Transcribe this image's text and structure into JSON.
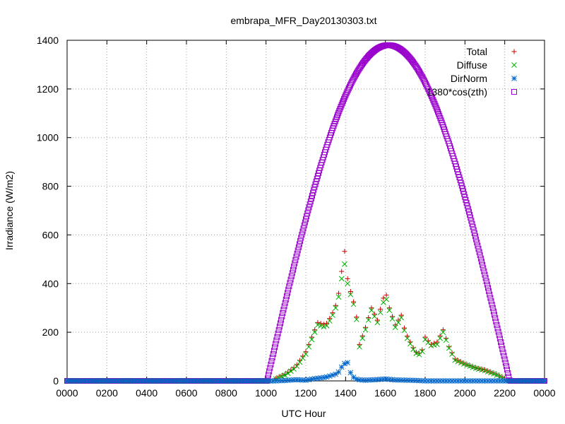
{
  "chart_data": {
    "type": "scatter",
    "title": "embrapa_MFR_Day20130303.txt",
    "xlabel": "UTC Hour",
    "ylabel": "Irradiance (W/m2)",
    "xlim": [
      0,
      24
    ],
    "ylim": [
      0,
      1400
    ],
    "x_tick_values": [
      0,
      2,
      4,
      6,
      8,
      10,
      12,
      14,
      16,
      18,
      20,
      22,
      24
    ],
    "x_tick_labels": [
      "0000",
      "0200",
      "0400",
      "0600",
      "0800",
      "1000",
      "1200",
      "1400",
      "1600",
      "1800",
      "2000",
      "2200",
      "0000"
    ],
    "y_ticks": [
      0,
      200,
      400,
      600,
      800,
      1000,
      1200,
      1400
    ],
    "grid": true,
    "legend_position": "top-right",
    "series": [
      {
        "name": "Total",
        "marker": "plus",
        "color": "#cc0000",
        "points": [
          [
            10.5,
            10
          ],
          [
            11.0,
            30
          ],
          [
            11.5,
            60
          ],
          [
            12.0,
            120
          ],
          [
            12.3,
            180
          ],
          [
            12.6,
            240
          ],
          [
            13.0,
            230
          ],
          [
            13.3,
            270
          ],
          [
            13.6,
            330
          ],
          [
            13.8,
            450
          ],
          [
            14.0,
            560
          ],
          [
            14.1,
            420
          ],
          [
            14.3,
            350
          ],
          [
            14.5,
            300
          ],
          [
            14.7,
            150
          ],
          [
            15.0,
            220
          ],
          [
            15.3,
            300
          ],
          [
            15.6,
            250
          ],
          [
            16.0,
            370
          ],
          [
            16.2,
            300
          ],
          [
            16.5,
            230
          ],
          [
            16.8,
            270
          ],
          [
            17.0,
            200
          ],
          [
            17.5,
            120
          ],
          [
            17.8,
            110
          ],
          [
            18.0,
            180
          ],
          [
            18.3,
            150
          ],
          [
            18.6,
            160
          ],
          [
            18.9,
            210
          ],
          [
            19.2,
            140
          ],
          [
            19.5,
            90
          ],
          [
            20.0,
            70
          ],
          [
            20.5,
            55
          ],
          [
            21.0,
            45
          ],
          [
            21.5,
            30
          ],
          [
            22.0,
            10
          ]
        ]
      },
      {
        "name": "Diffuse",
        "marker": "cross",
        "color": "#00b000",
        "points": [
          [
            10.5,
            8
          ],
          [
            11.0,
            25
          ],
          [
            11.5,
            55
          ],
          [
            12.0,
            110
          ],
          [
            12.3,
            170
          ],
          [
            12.6,
            230
          ],
          [
            13.0,
            220
          ],
          [
            13.3,
            260
          ],
          [
            13.6,
            320
          ],
          [
            13.8,
            420
          ],
          [
            14.0,
            500
          ],
          [
            14.1,
            400
          ],
          [
            14.3,
            340
          ],
          [
            14.5,
            290
          ],
          [
            14.7,
            140
          ],
          [
            15.0,
            210
          ],
          [
            15.3,
            290
          ],
          [
            15.6,
            240
          ],
          [
            16.0,
            350
          ],
          [
            16.2,
            290
          ],
          [
            16.5,
            220
          ],
          [
            16.8,
            260
          ],
          [
            17.0,
            190
          ],
          [
            17.5,
            115
          ],
          [
            17.8,
            105
          ],
          [
            18.0,
            170
          ],
          [
            18.3,
            145
          ],
          [
            18.6,
            150
          ],
          [
            18.9,
            200
          ],
          [
            19.2,
            135
          ],
          [
            19.5,
            85
          ],
          [
            20.0,
            68
          ],
          [
            20.5,
            53
          ],
          [
            21.0,
            42
          ],
          [
            21.5,
            28
          ],
          [
            22.0,
            8
          ]
        ]
      },
      {
        "name": "DirNorm",
        "marker": "asterisk",
        "color": "#0066cc",
        "points": [
          [
            10.0,
            0
          ],
          [
            10.5,
            0
          ],
          [
            11.0,
            2
          ],
          [
            11.5,
            5
          ],
          [
            12.0,
            3
          ],
          [
            12.5,
            10
          ],
          [
            13.0,
            15
          ],
          [
            13.6,
            30
          ],
          [
            13.9,
            70
          ],
          [
            14.1,
            75
          ],
          [
            14.3,
            20
          ],
          [
            14.6,
            5
          ],
          [
            15.0,
            3
          ],
          [
            15.5,
            5
          ],
          [
            16.0,
            8
          ],
          [
            16.5,
            4
          ],
          [
            17.0,
            3
          ],
          [
            17.5,
            2
          ],
          [
            18.0,
            0
          ],
          [
            19.0,
            0
          ],
          [
            20.0,
            0
          ],
          [
            21.0,
            0
          ],
          [
            22.0,
            0
          ]
        ]
      },
      {
        "name": "1380*cos(zth)",
        "marker": "square",
        "color": "#9900cc",
        "curve": {
          "amplitude": 1380,
          "start": 10.05,
          "end": 22.25,
          "peak": 16.15
        }
      }
    ]
  }
}
